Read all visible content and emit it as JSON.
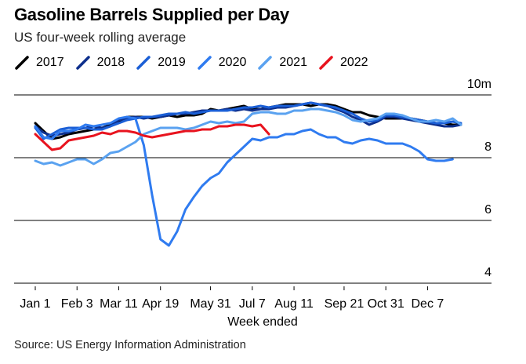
{
  "title": "Gasoline Barrels Supplied per Day",
  "subtitle": "US four-week rolling average",
  "source": "Source: US Energy Information Administration",
  "chart_data": {
    "type": "line",
    "title": "Gasoline Barrels Supplied per Day",
    "subtitle": "US four-week rolling average",
    "xlabel": "Week ended",
    "ylabel": "",
    "y_unit_label": "10m",
    "ylim": [
      4,
      10
    ],
    "yticks": [
      {
        "value": 10,
        "label": "10m"
      },
      {
        "value": 8,
        "label": "8"
      },
      {
        "value": 6,
        "label": "6"
      },
      {
        "value": 4,
        "label": "4"
      }
    ],
    "xlim": [
      1,
      52
    ],
    "xticks": [
      {
        "week": 1,
        "label": "Jan 1"
      },
      {
        "week": 6,
        "label": "Feb 3"
      },
      {
        "week": 11,
        "label": "Mar 11"
      },
      {
        "week": 16,
        "label": "Apr 19"
      },
      {
        "week": 22,
        "label": "May 31"
      },
      {
        "week": 27,
        "label": "Jul 7"
      },
      {
        "week": 32,
        "label": "Aug 11"
      },
      {
        "week": 38,
        "label": "Sep 21"
      },
      {
        "week": 43,
        "label": "Oct 31"
      },
      {
        "week": 48,
        "label": "Dec 7"
      }
    ],
    "series": [
      {
        "name": "2017",
        "color": "#000000",
        "x_start": 1,
        "values": [
          9.1,
          8.85,
          8.6,
          8.65,
          8.75,
          8.8,
          8.85,
          8.9,
          8.95,
          9.05,
          9.15,
          9.3,
          9.3,
          9.3,
          9.25,
          9.3,
          9.35,
          9.3,
          9.35,
          9.35,
          9.4,
          9.55,
          9.5,
          9.55,
          9.6,
          9.65,
          9.55,
          9.55,
          9.6,
          9.65,
          9.7,
          9.7,
          9.7,
          9.65,
          9.7,
          9.7,
          9.65,
          9.55,
          9.45,
          9.45,
          9.35,
          9.3,
          9.25,
          9.25,
          9.25,
          9.25,
          9.2,
          9.15,
          9.1,
          9.1,
          9.05,
          9.05
        ]
      },
      {
        "name": "2018",
        "color": "#0d2f8c",
        "x_start": 1,
        "values": [
          9.0,
          8.8,
          8.7,
          8.75,
          8.8,
          8.9,
          8.95,
          9.0,
          8.95,
          9.0,
          9.2,
          9.25,
          9.3,
          9.25,
          9.3,
          9.3,
          9.35,
          9.4,
          9.4,
          9.45,
          9.5,
          9.5,
          9.5,
          9.55,
          9.5,
          9.55,
          9.5,
          9.55,
          9.55,
          9.6,
          9.6,
          9.65,
          9.7,
          9.75,
          9.7,
          9.65,
          9.55,
          9.45,
          9.3,
          9.2,
          9.05,
          9.15,
          9.3,
          9.3,
          9.25,
          9.2,
          9.15,
          9.1,
          9.05,
          9.0,
          9.0,
          9.05
        ]
      },
      {
        "name": "2019",
        "color": "#1b5fd6",
        "x_start": 1,
        "values": [
          8.95,
          8.6,
          8.75,
          8.9,
          8.95,
          8.95,
          8.95,
          8.9,
          8.9,
          9.0,
          9.1,
          9.2,
          9.25,
          9.3,
          9.3,
          9.35,
          9.4,
          9.4,
          9.45,
          9.4,
          9.45,
          9.5,
          9.5,
          9.5,
          9.55,
          9.6,
          9.6,
          9.65,
          9.6,
          9.65,
          9.65,
          9.65,
          9.7,
          9.75,
          9.7,
          9.65,
          9.6,
          9.5,
          9.4,
          9.25,
          9.15,
          9.2,
          9.35,
          9.35,
          9.3,
          9.25,
          9.2,
          9.15,
          9.1,
          9.1,
          9.15,
          9.1
        ]
      },
      {
        "name": "2020",
        "color": "#2f7bf0",
        "x_start": 1,
        "values": [
          9.0,
          8.65,
          8.6,
          8.85,
          8.85,
          8.9,
          9.05,
          9.0,
          9.05,
          9.1,
          9.25,
          9.3,
          9.25,
          8.4,
          6.8,
          5.4,
          5.2,
          5.65,
          6.35,
          6.75,
          7.1,
          7.35,
          7.5,
          7.85,
          8.1,
          8.35,
          8.6,
          8.55,
          8.65,
          8.65,
          8.75,
          8.75,
          8.85,
          8.9,
          8.75,
          8.65,
          8.65,
          8.5,
          8.45,
          8.55,
          8.6,
          8.55,
          8.45,
          8.45,
          8.45,
          8.35,
          8.2,
          7.95,
          7.9,
          7.9,
          7.95
        ]
      },
      {
        "name": "2021",
        "color": "#5aa2f0",
        "x_start": 1,
        "values": [
          7.9,
          7.8,
          7.85,
          7.75,
          7.85,
          7.95,
          7.95,
          7.8,
          7.95,
          8.15,
          8.2,
          8.35,
          8.5,
          8.75,
          8.85,
          8.95,
          8.95,
          8.95,
          8.9,
          8.95,
          9.05,
          9.15,
          9.1,
          9.15,
          9.1,
          9.15,
          9.4,
          9.45,
          9.45,
          9.4,
          9.4,
          9.5,
          9.5,
          9.55,
          9.55,
          9.5,
          9.45,
          9.35,
          9.2,
          9.15,
          9.2,
          9.25,
          9.4,
          9.4,
          9.35,
          9.25,
          9.15,
          9.15,
          9.2,
          9.15,
          9.25,
          9.05
        ]
      },
      {
        "name": "2022",
        "color": "#e8131e",
        "x_start": 1,
        "values": [
          8.75,
          8.5,
          8.25,
          8.3,
          8.55,
          8.6,
          8.65,
          8.7,
          8.8,
          8.75,
          8.85,
          8.85,
          8.8,
          8.7,
          8.65,
          8.7,
          8.75,
          8.8,
          8.85,
          8.85,
          8.9,
          8.9,
          9.0,
          9.0,
          9.05,
          9.05,
          9.0,
          9.05,
          8.75
        ]
      }
    ]
  }
}
